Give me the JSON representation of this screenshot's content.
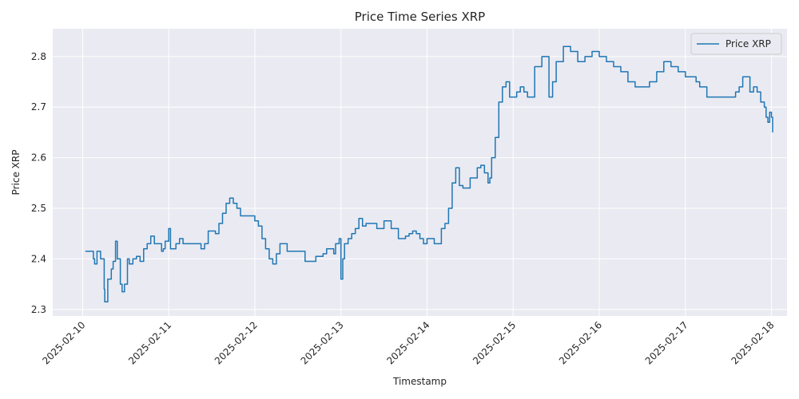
{
  "chart_data": {
    "type": "line",
    "title": "Price Time Series XRP",
    "xlabel": "Timestamp",
    "ylabel": "Price XRP",
    "x_axis_type": "date",
    "xlim": [
      "2025-02-09T15:40",
      "2025-02-18T04:20"
    ],
    "ylim": [
      2.287,
      2.855
    ],
    "xticks": [
      "2025-02-10",
      "2025-02-11",
      "2025-02-12",
      "2025-02-13",
      "2025-02-14",
      "2025-02-15",
      "2025-02-16",
      "2025-02-17",
      "2025-02-18"
    ],
    "yticks": [
      2.3,
      2.4,
      2.5,
      2.6,
      2.7,
      2.8
    ],
    "grid": true,
    "legend_position": "top-right",
    "colors": {
      "background": "#eaeaf2",
      "grid": "#ffffff",
      "line": "#1f77b4"
    },
    "series": [
      {
        "name": "Price XRP",
        "x": [
          "2025-02-10T00:45",
          "2025-02-10T02:00",
          "2025-02-10T03:00",
          "2025-02-10T03:20",
          "2025-02-10T04:00",
          "2025-02-10T05:00",
          "2025-02-10T06:00",
          "2025-02-10T06:10",
          "2025-02-10T07:00",
          "2025-02-10T08:00",
          "2025-02-10T08:30",
          "2025-02-10T09:10",
          "2025-02-10T09:40",
          "2025-02-10T10:30",
          "2025-02-10T11:00",
          "2025-02-10T11:40",
          "2025-02-10T12:30",
          "2025-02-10T13:00",
          "2025-02-10T14:00",
          "2025-02-10T15:00",
          "2025-02-10T16:00",
          "2025-02-10T17:00",
          "2025-02-10T18:00",
          "2025-02-10T19:00",
          "2025-02-10T20:00",
          "2025-02-10T21:00",
          "2025-02-10T22:00",
          "2025-02-10T22:30",
          "2025-02-10T23:00",
          "2025-02-11T00:00",
          "2025-02-11T00:30",
          "2025-02-11T01:00",
          "2025-02-11T02:00",
          "2025-02-11T03:00",
          "2025-02-11T04:00",
          "2025-02-11T05:00",
          "2025-02-11T06:00",
          "2025-02-11T08:00",
          "2025-02-11T09:00",
          "2025-02-11T10:00",
          "2025-02-11T11:00",
          "2025-02-11T12:00",
          "2025-02-11T13:00",
          "2025-02-11T14:00",
          "2025-02-11T15:00",
          "2025-02-11T16:00",
          "2025-02-11T17:00",
          "2025-02-11T18:00",
          "2025-02-11T19:00",
          "2025-02-11T20:00",
          "2025-02-11T21:00",
          "2025-02-11T22:00",
          "2025-02-12T00:00",
          "2025-02-12T01:00",
          "2025-02-12T02:00",
          "2025-02-12T03:00",
          "2025-02-12T04:00",
          "2025-02-12T05:00",
          "2025-02-12T06:00",
          "2025-02-12T07:00",
          "2025-02-12T09:00",
          "2025-02-12T11:00",
          "2025-02-12T14:00",
          "2025-02-12T17:00",
          "2025-02-12T19:00",
          "2025-02-12T20:00",
          "2025-02-12T21:00",
          "2025-02-12T22:00",
          "2025-02-12T22:30",
          "2025-02-12T23:00",
          "2025-02-12T23:30",
          "2025-02-13T00:00",
          "2025-02-13T00:30",
          "2025-02-13T01:00",
          "2025-02-13T02:00",
          "2025-02-13T03:00",
          "2025-02-13T04:00",
          "2025-02-13T05:00",
          "2025-02-13T06:00",
          "2025-02-13T07:00",
          "2025-02-13T08:00",
          "2025-02-13T10:00",
          "2025-02-13T12:00",
          "2025-02-13T14:00",
          "2025-02-13T16:00",
          "2025-02-13T18:00",
          "2025-02-13T19:00",
          "2025-02-13T20:00",
          "2025-02-13T21:00",
          "2025-02-13T22:00",
          "2025-02-13T23:00",
          "2025-02-14T00:00",
          "2025-02-14T02:00",
          "2025-02-14T03:00",
          "2025-02-14T04:00",
          "2025-02-14T05:00",
          "2025-02-14T06:00",
          "2025-02-14T07:00",
          "2025-02-14T08:00",
          "2025-02-14T09:00",
          "2025-02-14T10:00",
          "2025-02-14T12:00",
          "2025-02-14T14:00",
          "2025-02-14T15:00",
          "2025-02-14T16:00",
          "2025-02-14T17:00",
          "2025-02-14T17:30",
          "2025-02-14T18:00",
          "2025-02-14T19:00",
          "2025-02-14T20:00",
          "2025-02-14T21:00",
          "2025-02-14T22:00",
          "2025-02-14T23:00",
          "2025-02-15T00:00",
          "2025-02-15T01:00",
          "2025-02-15T02:00",
          "2025-02-15T03:00",
          "2025-02-15T04:00",
          "2025-02-15T06:00",
          "2025-02-15T08:00",
          "2025-02-15T10:00",
          "2025-02-15T11:00",
          "2025-02-15T12:00",
          "2025-02-15T14:00",
          "2025-02-15T16:00",
          "2025-02-15T18:00",
          "2025-02-15T20:00",
          "2025-02-15T22:00",
          "2025-02-16T00:00",
          "2025-02-16T02:00",
          "2025-02-16T04:00",
          "2025-02-16T06:00",
          "2025-02-16T08:00",
          "2025-02-16T10:00",
          "2025-02-16T12:00",
          "2025-02-16T14:00",
          "2025-02-16T16:00",
          "2025-02-16T18:00",
          "2025-02-16T20:00",
          "2025-02-16T22:00",
          "2025-02-17T00:00",
          "2025-02-17T02:00",
          "2025-02-17T03:00",
          "2025-02-17T04:00",
          "2025-02-17T06:00",
          "2025-02-17T08:00",
          "2025-02-17T10:00",
          "2025-02-17T12:00",
          "2025-02-17T13:00",
          "2025-02-17T14:00",
          "2025-02-17T15:00",
          "2025-02-17T16:00",
          "2025-02-17T17:00",
          "2025-02-17T18:00",
          "2025-02-17T19:00",
          "2025-02-17T20:00",
          "2025-02-17T21:00",
          "2025-02-17T22:00",
          "2025-02-17T22:30",
          "2025-02-17T23:00",
          "2025-02-17T23:30",
          "2025-02-18T00:00",
          "2025-02-18T00:20"
        ],
        "y": [
          2.415,
          2.415,
          2.4,
          2.39,
          2.415,
          2.4,
          2.34,
          2.315,
          2.36,
          2.38,
          2.395,
          2.435,
          2.4,
          2.35,
          2.335,
          2.35,
          2.4,
          2.39,
          2.4,
          2.405,
          2.395,
          2.42,
          2.43,
          2.445,
          2.43,
          2.43,
          2.415,
          2.42,
          2.435,
          2.46,
          2.42,
          2.42,
          2.43,
          2.44,
          2.43,
          2.43,
          2.43,
          2.43,
          2.42,
          2.43,
          2.455,
          2.455,
          2.45,
          2.47,
          2.49,
          2.51,
          2.52,
          2.51,
          2.5,
          2.485,
          2.485,
          2.485,
          2.475,
          2.465,
          2.44,
          2.42,
          2.4,
          2.39,
          2.41,
          2.43,
          2.415,
          2.415,
          2.395,
          2.405,
          2.41,
          2.42,
          2.42,
          2.41,
          2.43,
          2.43,
          2.44,
          2.36,
          2.4,
          2.43,
          2.44,
          2.45,
          2.46,
          2.48,
          2.465,
          2.47,
          2.47,
          2.46,
          2.475,
          2.46,
          2.44,
          2.445,
          2.45,
          2.455,
          2.45,
          2.44,
          2.43,
          2.44,
          2.43,
          2.43,
          2.46,
          2.47,
          2.5,
          2.55,
          2.58,
          2.545,
          2.54,
          2.56,
          2.58,
          2.585,
          2.57,
          2.55,
          2.56,
          2.6,
          2.64,
          2.71,
          2.74,
          2.75,
          2.72,
          2.72,
          2.73,
          2.74,
          2.73,
          2.72,
          2.78,
          2.8,
          2.72,
          2.75,
          2.79,
          2.82,
          2.81,
          2.79,
          2.8,
          2.81,
          2.8,
          2.79,
          2.78,
          2.77,
          2.75,
          2.74,
          2.74,
          2.75,
          2.77,
          2.79,
          2.78,
          2.77,
          2.76,
          2.76,
          2.75,
          2.74,
          2.72,
          2.72,
          2.72,
          2.72,
          2.72,
          2.73,
          2.74,
          2.76,
          2.76,
          2.73,
          2.74,
          2.73,
          2.71,
          2.7,
          2.68,
          2.67,
          2.69,
          2.68,
          2.65
        ]
      }
    ]
  }
}
